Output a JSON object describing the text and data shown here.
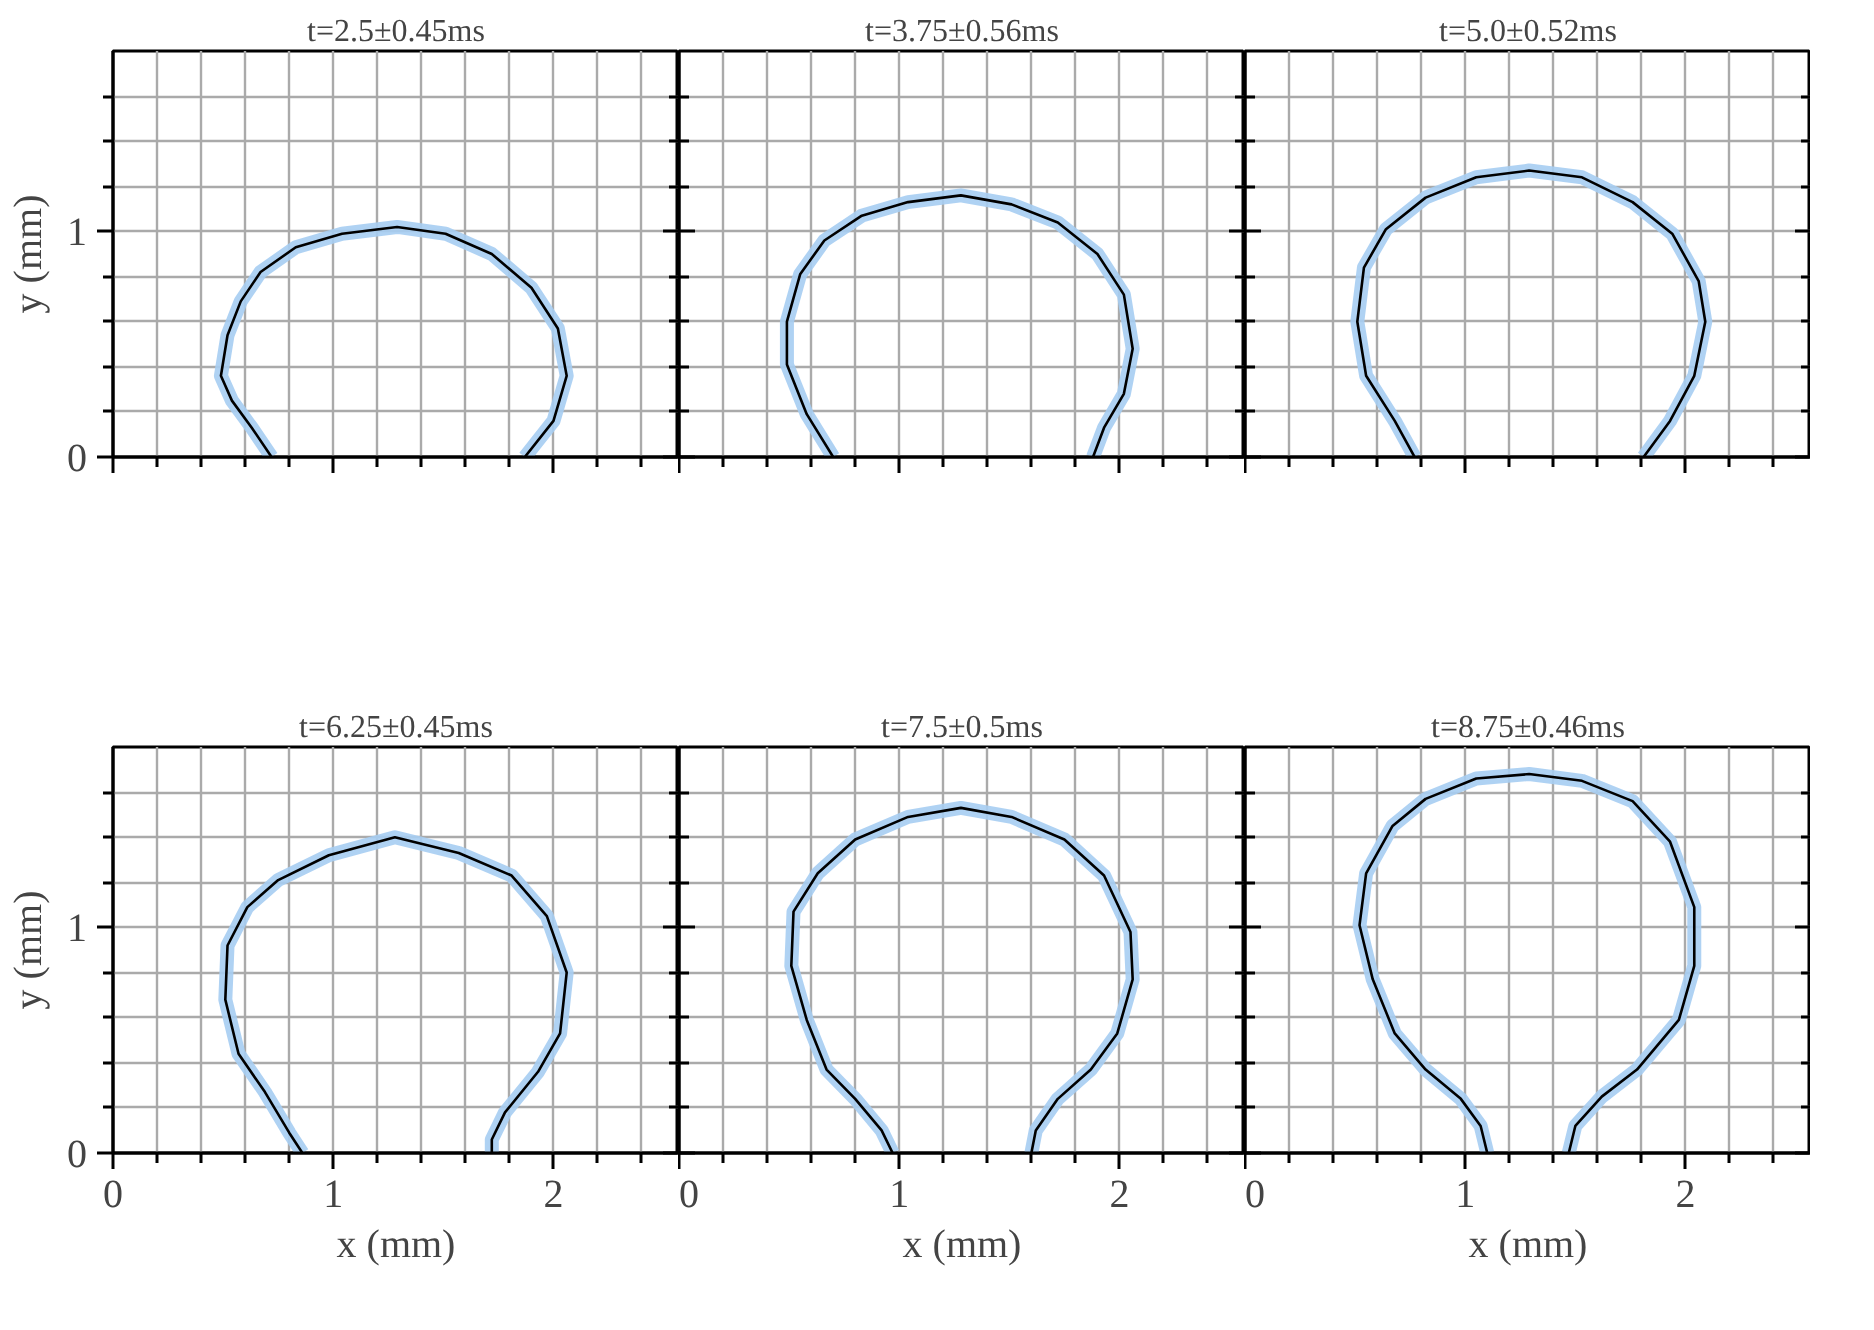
{
  "chart_data": [
    {
      "type": "line",
      "title": "t=2.5±0.45ms",
      "ylabel": "y (mm)",
      "tick_labels": "y",
      "grid": true,
      "xlim": [
        0,
        2.57
      ],
      "ylim": [
        0,
        1.8
      ],
      "xticks": [
        0,
        {
          "value": 0.2,
          "label": null
        },
        {
          "value": 0.4,
          "label": null
        },
        {
          "value": 0.6,
          "label": null
        },
        {
          "value": 0.8,
          "label": null
        },
        1,
        {
          "value": 1.2,
          "label": null
        },
        {
          "value": 1.4,
          "label": null
        },
        {
          "value": 1.6,
          "label": null
        },
        {
          "value": 1.8,
          "label": null
        },
        2,
        {
          "value": 2.2,
          "label": null
        },
        {
          "value": 2.4,
          "label": null
        }
      ],
      "yticks": [
        0,
        {
          "value": 0.2,
          "label": null
        },
        {
          "value": 0.4,
          "label": null
        },
        {
          "value": 0.6,
          "label": null
        },
        {
          "value": 0.8,
          "label": null
        },
        1,
        {
          "value": 1.2,
          "label": null
        },
        {
          "value": 1.4,
          "label": null
        },
        {
          "value": 1.6,
          "label": null
        }
      ],
      "series": [
        {
          "color": "#a6cdf2",
          "x": [
            0.72,
            0.63,
            0.54,
            0.49,
            0.52,
            0.58,
            0.67,
            0.83,
            1.04,
            1.29,
            1.51,
            1.72,
            1.9,
            2.02,
            2.06,
            2.0,
            1.87
          ],
          "values": [
            0,
            0.13,
            0.25,
            0.36,
            0.54,
            0.69,
            0.82,
            0.93,
            0.99,
            1.02,
            0.99,
            0.9,
            0.75,
            0.57,
            0.36,
            0.16,
            0
          ]
        },
        {
          "color": "#000000",
          "x": [
            0.72,
            0.63,
            0.54,
            0.49,
            0.52,
            0.58,
            0.67,
            0.83,
            1.04,
            1.29,
            1.51,
            1.72,
            1.9,
            2.02,
            2.06,
            2.0,
            1.87
          ],
          "values": [
            0,
            0.13,
            0.25,
            0.36,
            0.54,
            0.69,
            0.82,
            0.93,
            0.99,
            1.02,
            0.99,
            0.9,
            0.75,
            0.57,
            0.36,
            0.16,
            0
          ]
        }
      ]
    },
    {
      "type": "line",
      "title": "t=3.75±0.56ms",
      "tick_labels": false,
      "grid": true,
      "xlim": [
        0,
        2.57
      ],
      "ylim": [
        0,
        1.8
      ],
      "xticks": [
        0,
        {
          "value": 0.2,
          "label": null
        },
        {
          "value": 0.4,
          "label": null
        },
        {
          "value": 0.6,
          "label": null
        },
        {
          "value": 0.8,
          "label": null
        },
        1,
        {
          "value": 1.2,
          "label": null
        },
        {
          "value": 1.4,
          "label": null
        },
        {
          "value": 1.6,
          "label": null
        },
        {
          "value": 1.8,
          "label": null
        },
        2,
        {
          "value": 2.2,
          "label": null
        },
        {
          "value": 2.4,
          "label": null
        }
      ],
      "yticks": [
        0,
        {
          "value": 0.2,
          "label": null
        },
        {
          "value": 0.4,
          "label": null
        },
        {
          "value": 0.6,
          "label": null
        },
        {
          "value": 0.8,
          "label": null
        },
        1,
        {
          "value": 1.2,
          "label": null
        },
        {
          "value": 1.4,
          "label": null
        },
        {
          "value": 1.6,
          "label": null
        }
      ],
      "series": [
        {
          "color": "#a6cdf2",
          "x": [
            0.7,
            0.58,
            0.49,
            0.49,
            0.55,
            0.66,
            0.83,
            1.04,
            1.28,
            1.51,
            1.72,
            1.9,
            2.02,
            2.06,
            2.02,
            1.93,
            1.88
          ],
          "values": [
            0,
            0.19,
            0.41,
            0.6,
            0.81,
            0.96,
            1.07,
            1.13,
            1.16,
            1.12,
            1.04,
            0.9,
            0.72,
            0.48,
            0.28,
            0.13,
            0
          ]
        },
        {
          "color": "#000000",
          "x": [
            0.7,
            0.58,
            0.49,
            0.49,
            0.55,
            0.66,
            0.83,
            1.04,
            1.28,
            1.51,
            1.72,
            1.9,
            2.02,
            2.06,
            2.02,
            1.93,
            1.88
          ],
          "values": [
            0,
            0.19,
            0.41,
            0.6,
            0.81,
            0.96,
            1.07,
            1.13,
            1.16,
            1.12,
            1.04,
            0.9,
            0.72,
            0.48,
            0.28,
            0.13,
            0
          ]
        }
      ]
    },
    {
      "type": "line",
      "title": "t=5.0±0.52ms",
      "tick_labels": false,
      "grid": true,
      "xlim": [
        0,
        2.57
      ],
      "ylim": [
        0,
        1.8
      ],
      "xticks": [
        0,
        {
          "value": 0.2,
          "label": null
        },
        {
          "value": 0.4,
          "label": null
        },
        {
          "value": 0.6,
          "label": null
        },
        {
          "value": 0.8,
          "label": null
        },
        1,
        {
          "value": 1.2,
          "label": null
        },
        {
          "value": 1.4,
          "label": null
        },
        {
          "value": 1.6,
          "label": null
        },
        {
          "value": 1.8,
          "label": null
        },
        2,
        {
          "value": 2.2,
          "label": null
        },
        {
          "value": 2.4,
          "label": null
        }
      ],
      "yticks": [
        0,
        {
          "value": 0.2,
          "label": null
        },
        {
          "value": 0.4,
          "label": null
        },
        {
          "value": 0.6,
          "label": null
        },
        {
          "value": 0.8,
          "label": null
        },
        1,
        {
          "value": 1.2,
          "label": null
        },
        {
          "value": 1.4,
          "label": null
        },
        {
          "value": 1.6,
          "label": null
        }
      ],
      "series": [
        {
          "color": "#a6cdf2",
          "x": [
            0.77,
            0.68,
            0.55,
            0.51,
            0.54,
            0.64,
            0.82,
            1.05,
            1.29,
            1.53,
            1.76,
            1.94,
            2.06,
            2.09,
            2.04,
            1.93,
            1.81
          ],
          "values": [
            0,
            0.16,
            0.36,
            0.6,
            0.84,
            1.01,
            1.15,
            1.24,
            1.27,
            1.24,
            1.13,
            0.99,
            0.78,
            0.6,
            0.36,
            0.16,
            0
          ]
        },
        {
          "color": "#000000",
          "x": [
            0.77,
            0.68,
            0.55,
            0.51,
            0.54,
            0.64,
            0.82,
            1.05,
            1.29,
            1.53,
            1.76,
            1.94,
            2.06,
            2.09,
            2.04,
            1.93,
            1.81
          ],
          "values": [
            0,
            0.16,
            0.36,
            0.6,
            0.84,
            1.01,
            1.15,
            1.24,
            1.27,
            1.24,
            1.13,
            0.99,
            0.78,
            0.6,
            0.36,
            0.16,
            0
          ]
        }
      ]
    },
    {
      "type": "line",
      "title": "t=6.25±0.45ms",
      "xlabel": "x (mm)",
      "ylabel": "y (mm)",
      "grid": true,
      "xlim": [
        0,
        2.57
      ],
      "ylim": [
        0,
        1.8
      ],
      "xticks": [
        0,
        {
          "value": 0.2,
          "label": null
        },
        {
          "value": 0.4,
          "label": null
        },
        {
          "value": 0.6,
          "label": null
        },
        {
          "value": 0.8,
          "label": null
        },
        1,
        {
          "value": 1.2,
          "label": null
        },
        {
          "value": 1.4,
          "label": null
        },
        {
          "value": 1.6,
          "label": null
        },
        {
          "value": 1.8,
          "label": null
        },
        2,
        {
          "value": 2.2,
          "label": null
        },
        {
          "value": 2.4,
          "label": null
        }
      ],
      "yticks": [
        0,
        {
          "value": 0.2,
          "label": null
        },
        {
          "value": 0.4,
          "label": null
        },
        {
          "value": 0.6,
          "label": null
        },
        {
          "value": 0.8,
          "label": null
        },
        1,
        {
          "value": 1.2,
          "label": null
        },
        {
          "value": 1.4,
          "label": null
        },
        {
          "value": 1.6,
          "label": null
        }
      ],
      "series": [
        {
          "color": "#a6cdf2",
          "x": [
            0.86,
            0.8,
            0.69,
            0.57,
            0.51,
            0.52,
            0.61,
            0.75,
            0.98,
            1.28,
            1.57,
            1.81,
            1.97,
            2.06,
            2.03,
            1.93,
            1.78,
            1.72,
            1.72
          ],
          "values": [
            0,
            0.09,
            0.27,
            0.44,
            0.68,
            0.92,
            1.09,
            1.21,
            1.32,
            1.4,
            1.33,
            1.23,
            1.05,
            0.8,
            0.53,
            0.36,
            0.18,
            0.06,
            0
          ]
        },
        {
          "color": "#000000",
          "x": [
            0.86,
            0.8,
            0.69,
            0.57,
            0.51,
            0.52,
            0.61,
            0.75,
            0.98,
            1.28,
            1.57,
            1.81,
            1.97,
            2.06,
            2.03,
            1.93,
            1.78,
            1.72,
            1.72
          ],
          "values": [
            0,
            0.09,
            0.27,
            0.44,
            0.68,
            0.92,
            1.09,
            1.21,
            1.32,
            1.4,
            1.33,
            1.23,
            1.05,
            0.8,
            0.53,
            0.36,
            0.18,
            0.06,
            0
          ]
        }
      ]
    },
    {
      "type": "line",
      "title": "t=7.5±0.5ms",
      "xlabel": "x (mm)",
      "tick_labels": "x",
      "grid": true,
      "xlim": [
        0,
        2.57
      ],
      "ylim": [
        0,
        1.8
      ],
      "xticks": [
        0,
        {
          "value": 0.2,
          "label": null
        },
        {
          "value": 0.4,
          "label": null
        },
        {
          "value": 0.6,
          "label": null
        },
        {
          "value": 0.8,
          "label": null
        },
        1,
        {
          "value": 1.2,
          "label": null
        },
        {
          "value": 1.4,
          "label": null
        },
        {
          "value": 1.6,
          "label": null
        },
        {
          "value": 1.8,
          "label": null
        },
        2,
        {
          "value": 2.2,
          "label": null
        },
        {
          "value": 2.4,
          "label": null
        }
      ],
      "yticks": [
        0,
        {
          "value": 0.2,
          "label": null
        },
        {
          "value": 0.4,
          "label": null
        },
        {
          "value": 0.6,
          "label": null
        },
        {
          "value": 0.8,
          "label": null
        },
        1,
        {
          "value": 1.2,
          "label": null
        },
        {
          "value": 1.4,
          "label": null
        },
        {
          "value": 1.6,
          "label": null
        }
      ],
      "series": [
        {
          "color": "#a6cdf2",
          "x": [
            0.97,
            0.92,
            0.8,
            0.67,
            0.58,
            0.51,
            0.52,
            0.63,
            0.8,
            1.04,
            1.28,
            1.51,
            1.75,
            1.93,
            2.05,
            2.06,
            1.99,
            1.87,
            1.72,
            1.62,
            1.6
          ],
          "values": [
            0,
            0.1,
            0.24,
            0.37,
            0.59,
            0.83,
            1.07,
            1.24,
            1.39,
            1.49,
            1.53,
            1.49,
            1.39,
            1.23,
            0.98,
            0.77,
            0.53,
            0.37,
            0.24,
            0.1,
            0
          ]
        },
        {
          "color": "#000000",
          "x": [
            0.97,
            0.92,
            0.8,
            0.67,
            0.58,
            0.51,
            0.52,
            0.63,
            0.8,
            1.04,
            1.28,
            1.51,
            1.75,
            1.93,
            2.05,
            2.06,
            1.99,
            1.87,
            1.72,
            1.62,
            1.6
          ],
          "values": [
            0,
            0.1,
            0.24,
            0.37,
            0.59,
            0.83,
            1.07,
            1.24,
            1.39,
            1.49,
            1.53,
            1.49,
            1.39,
            1.23,
            0.98,
            0.77,
            0.53,
            0.37,
            0.24,
            0.1,
            0
          ]
        }
      ]
    },
    {
      "type": "line",
      "title": "t=8.75±0.46ms",
      "xlabel": "x (mm)",
      "tick_labels": "x",
      "grid": true,
      "xlim": [
        0,
        2.57
      ],
      "ylim": [
        0,
        1.8
      ],
      "xticks": [
        0,
        {
          "value": 0.2,
          "label": null
        },
        {
          "value": 0.4,
          "label": null
        },
        {
          "value": 0.6,
          "label": null
        },
        {
          "value": 0.8,
          "label": null
        },
        1,
        {
          "value": 1.2,
          "label": null
        },
        {
          "value": 1.4,
          "label": null
        },
        {
          "value": 1.6,
          "label": null
        },
        {
          "value": 1.8,
          "label": null
        },
        2,
        {
          "value": 2.2,
          "label": null
        },
        {
          "value": 2.4,
          "label": null
        }
      ],
      "yticks": [
        0,
        {
          "value": 0.2,
          "label": null
        },
        {
          "value": 0.4,
          "label": null
        },
        {
          "value": 0.6,
          "label": null
        },
        {
          "value": 0.8,
          "label": null
        },
        1,
        {
          "value": 1.2,
          "label": null
        },
        {
          "value": 1.4,
          "label": null
        },
        {
          "value": 1.6,
          "label": null
        }
      ],
      "series": [
        {
          "color": "#a6cdf2",
          "x": [
            1.1,
            1.07,
            0.98,
            0.82,
            0.68,
            0.58,
            0.52,
            0.55,
            0.67,
            0.82,
            1.05,
            1.29,
            1.53,
            1.76,
            1.93,
            2.04,
            2.04,
            1.97,
            1.78,
            1.62,
            1.5,
            1.47
          ],
          "values": [
            0,
            0.12,
            0.24,
            0.37,
            0.53,
            0.77,
            1.01,
            1.24,
            1.45,
            1.57,
            1.66,
            1.68,
            1.65,
            1.56,
            1.38,
            1.09,
            0.83,
            0.59,
            0.37,
            0.25,
            0.12,
            0
          ]
        },
        {
          "color": "#000000",
          "x": [
            1.1,
            1.07,
            0.98,
            0.82,
            0.68,
            0.58,
            0.52,
            0.55,
            0.67,
            0.82,
            1.05,
            1.29,
            1.53,
            1.76,
            1.93,
            2.04,
            2.04,
            1.97,
            1.78,
            1.62,
            1.5,
            1.47
          ],
          "values": [
            0,
            0.12,
            0.24,
            0.37,
            0.53,
            0.77,
            1.01,
            1.24,
            1.45,
            1.57,
            1.66,
            1.68,
            1.65,
            1.56,
            1.38,
            1.09,
            0.83,
            0.59,
            0.37,
            0.25,
            0.12,
            0
          ]
        }
      ]
    }
  ]
}
